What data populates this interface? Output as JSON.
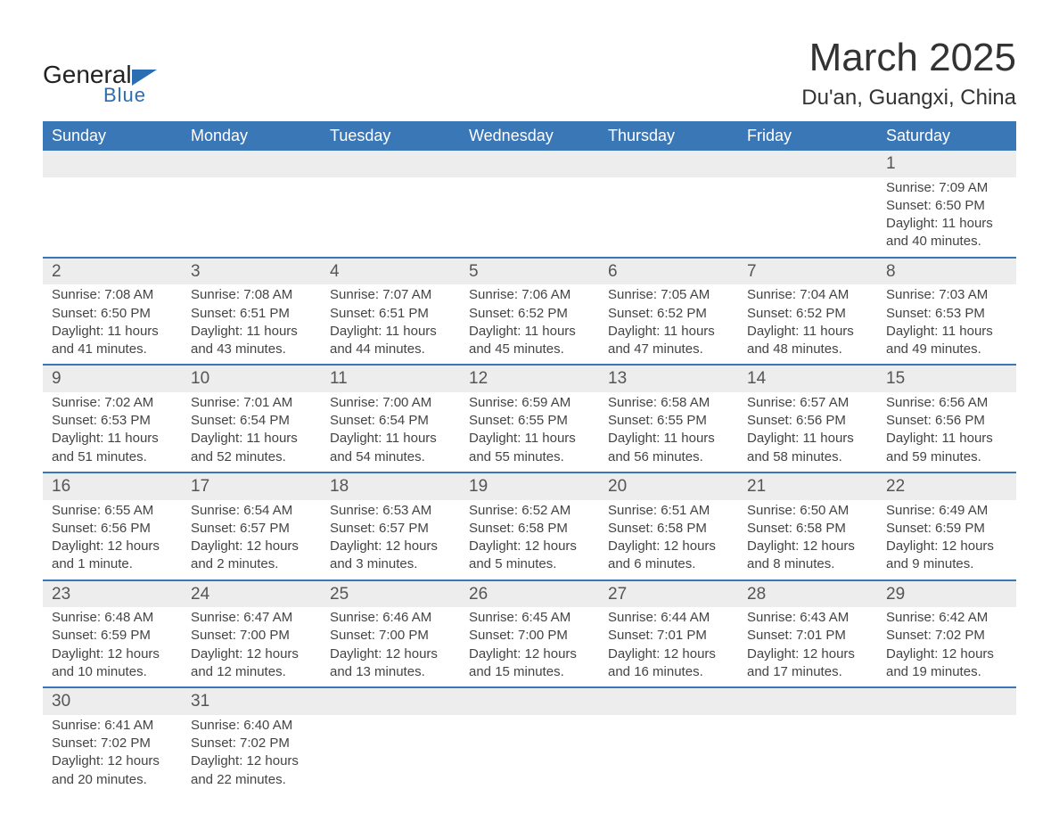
{
  "logo": {
    "word1": "General",
    "word2": "Blue"
  },
  "title": {
    "month": "March 2025",
    "location": "Du'an, Guangxi, China"
  },
  "weekdays": [
    "Sunday",
    "Monday",
    "Tuesday",
    "Wednesday",
    "Thursday",
    "Friday",
    "Saturday"
  ],
  "colors": {
    "header_bg": "#3a77b7",
    "header_text": "#ffffff",
    "row_stripe": "#ededed",
    "row_border": "#3a77b7",
    "text": "#444444",
    "logo_blue": "#2b6db3"
  },
  "fonts": {
    "title_month_pt": 44,
    "title_location_pt": 24,
    "weekday_pt": 18,
    "daynum_pt": 19,
    "body_pt": 15,
    "logo_general_pt": 28,
    "logo_blue_pt": 22
  },
  "weeks": [
    [
      null,
      null,
      null,
      null,
      null,
      null,
      {
        "n": "1",
        "sr": "Sunrise: 7:09 AM",
        "ss": "Sunset: 6:50 PM",
        "d1": "Daylight: 11 hours",
        "d2": "and 40 minutes."
      }
    ],
    [
      {
        "n": "2",
        "sr": "Sunrise: 7:08 AM",
        "ss": "Sunset: 6:50 PM",
        "d1": "Daylight: 11 hours",
        "d2": "and 41 minutes."
      },
      {
        "n": "3",
        "sr": "Sunrise: 7:08 AM",
        "ss": "Sunset: 6:51 PM",
        "d1": "Daylight: 11 hours",
        "d2": "and 43 minutes."
      },
      {
        "n": "4",
        "sr": "Sunrise: 7:07 AM",
        "ss": "Sunset: 6:51 PM",
        "d1": "Daylight: 11 hours",
        "d2": "and 44 minutes."
      },
      {
        "n": "5",
        "sr": "Sunrise: 7:06 AM",
        "ss": "Sunset: 6:52 PM",
        "d1": "Daylight: 11 hours",
        "d2": "and 45 minutes."
      },
      {
        "n": "6",
        "sr": "Sunrise: 7:05 AM",
        "ss": "Sunset: 6:52 PM",
        "d1": "Daylight: 11 hours",
        "d2": "and 47 minutes."
      },
      {
        "n": "7",
        "sr": "Sunrise: 7:04 AM",
        "ss": "Sunset: 6:52 PM",
        "d1": "Daylight: 11 hours",
        "d2": "and 48 minutes."
      },
      {
        "n": "8",
        "sr": "Sunrise: 7:03 AM",
        "ss": "Sunset: 6:53 PM",
        "d1": "Daylight: 11 hours",
        "d2": "and 49 minutes."
      }
    ],
    [
      {
        "n": "9",
        "sr": "Sunrise: 7:02 AM",
        "ss": "Sunset: 6:53 PM",
        "d1": "Daylight: 11 hours",
        "d2": "and 51 minutes."
      },
      {
        "n": "10",
        "sr": "Sunrise: 7:01 AM",
        "ss": "Sunset: 6:54 PM",
        "d1": "Daylight: 11 hours",
        "d2": "and 52 minutes."
      },
      {
        "n": "11",
        "sr": "Sunrise: 7:00 AM",
        "ss": "Sunset: 6:54 PM",
        "d1": "Daylight: 11 hours",
        "d2": "and 54 minutes."
      },
      {
        "n": "12",
        "sr": "Sunrise: 6:59 AM",
        "ss": "Sunset: 6:55 PM",
        "d1": "Daylight: 11 hours",
        "d2": "and 55 minutes."
      },
      {
        "n": "13",
        "sr": "Sunrise: 6:58 AM",
        "ss": "Sunset: 6:55 PM",
        "d1": "Daylight: 11 hours",
        "d2": "and 56 minutes."
      },
      {
        "n": "14",
        "sr": "Sunrise: 6:57 AM",
        "ss": "Sunset: 6:56 PM",
        "d1": "Daylight: 11 hours",
        "d2": "and 58 minutes."
      },
      {
        "n": "15",
        "sr": "Sunrise: 6:56 AM",
        "ss": "Sunset: 6:56 PM",
        "d1": "Daylight: 11 hours",
        "d2": "and 59 minutes."
      }
    ],
    [
      {
        "n": "16",
        "sr": "Sunrise: 6:55 AM",
        "ss": "Sunset: 6:56 PM",
        "d1": "Daylight: 12 hours",
        "d2": "and 1 minute."
      },
      {
        "n": "17",
        "sr": "Sunrise: 6:54 AM",
        "ss": "Sunset: 6:57 PM",
        "d1": "Daylight: 12 hours",
        "d2": "and 2 minutes."
      },
      {
        "n": "18",
        "sr": "Sunrise: 6:53 AM",
        "ss": "Sunset: 6:57 PM",
        "d1": "Daylight: 12 hours",
        "d2": "and 3 minutes."
      },
      {
        "n": "19",
        "sr": "Sunrise: 6:52 AM",
        "ss": "Sunset: 6:58 PM",
        "d1": "Daylight: 12 hours",
        "d2": "and 5 minutes."
      },
      {
        "n": "20",
        "sr": "Sunrise: 6:51 AM",
        "ss": "Sunset: 6:58 PM",
        "d1": "Daylight: 12 hours",
        "d2": "and 6 minutes."
      },
      {
        "n": "21",
        "sr": "Sunrise: 6:50 AM",
        "ss": "Sunset: 6:58 PM",
        "d1": "Daylight: 12 hours",
        "d2": "and 8 minutes."
      },
      {
        "n": "22",
        "sr": "Sunrise: 6:49 AM",
        "ss": "Sunset: 6:59 PM",
        "d1": "Daylight: 12 hours",
        "d2": "and 9 minutes."
      }
    ],
    [
      {
        "n": "23",
        "sr": "Sunrise: 6:48 AM",
        "ss": "Sunset: 6:59 PM",
        "d1": "Daylight: 12 hours",
        "d2": "and 10 minutes."
      },
      {
        "n": "24",
        "sr": "Sunrise: 6:47 AM",
        "ss": "Sunset: 7:00 PM",
        "d1": "Daylight: 12 hours",
        "d2": "and 12 minutes."
      },
      {
        "n": "25",
        "sr": "Sunrise: 6:46 AM",
        "ss": "Sunset: 7:00 PM",
        "d1": "Daylight: 12 hours",
        "d2": "and 13 minutes."
      },
      {
        "n": "26",
        "sr": "Sunrise: 6:45 AM",
        "ss": "Sunset: 7:00 PM",
        "d1": "Daylight: 12 hours",
        "d2": "and 15 minutes."
      },
      {
        "n": "27",
        "sr": "Sunrise: 6:44 AM",
        "ss": "Sunset: 7:01 PM",
        "d1": "Daylight: 12 hours",
        "d2": "and 16 minutes."
      },
      {
        "n": "28",
        "sr": "Sunrise: 6:43 AM",
        "ss": "Sunset: 7:01 PM",
        "d1": "Daylight: 12 hours",
        "d2": "and 17 minutes."
      },
      {
        "n": "29",
        "sr": "Sunrise: 6:42 AM",
        "ss": "Sunset: 7:02 PM",
        "d1": "Daylight: 12 hours",
        "d2": "and 19 minutes."
      }
    ],
    [
      {
        "n": "30",
        "sr": "Sunrise: 6:41 AM",
        "ss": "Sunset: 7:02 PM",
        "d1": "Daylight: 12 hours",
        "d2": "and 20 minutes."
      },
      {
        "n": "31",
        "sr": "Sunrise: 6:40 AM",
        "ss": "Sunset: 7:02 PM",
        "d1": "Daylight: 12 hours",
        "d2": "and 22 minutes."
      },
      null,
      null,
      null,
      null,
      null
    ]
  ]
}
